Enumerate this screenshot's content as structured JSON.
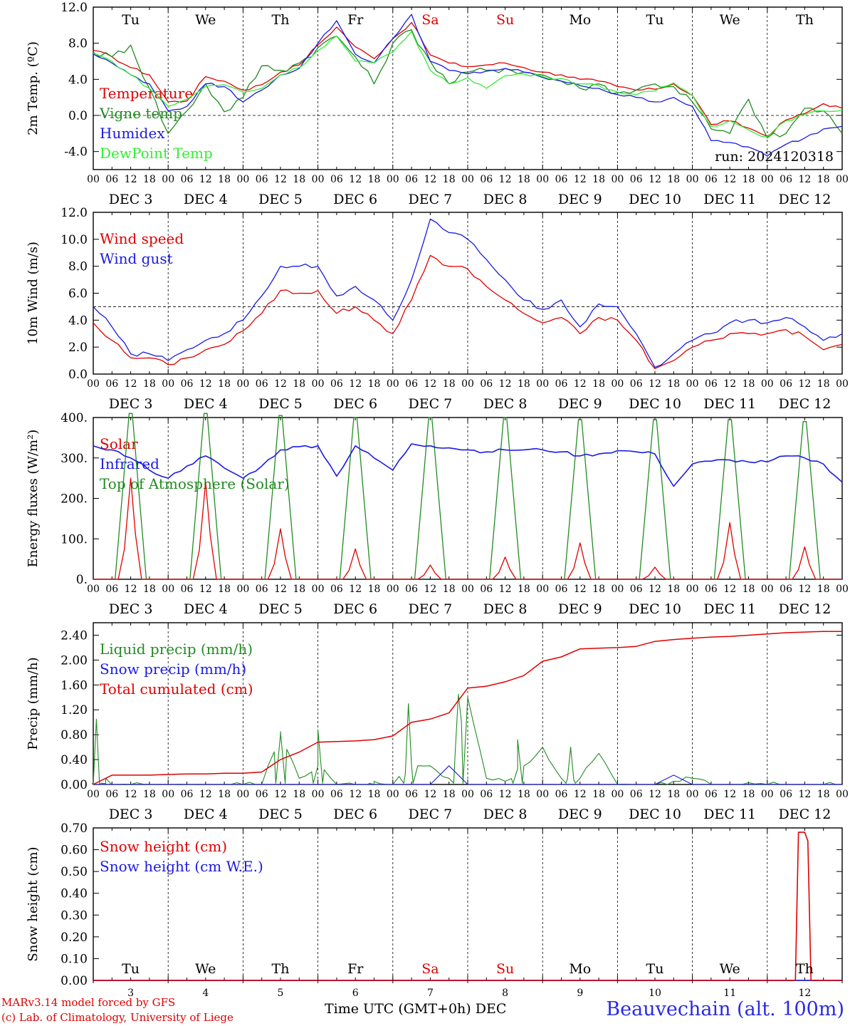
{
  "colors": {
    "red": "#e00000",
    "green": "#228b22",
    "blue": "#1a1ae6",
    "lime": "#33ee33",
    "weekend": "#e00000"
  },
  "footer": {
    "credit_line1": "MARv3.14 model forced by GFS",
    "credit_line2": "(c) Lab. of Climatology, University of Liege",
    "x_title": "Time UTC (GMT+0h) DEC",
    "station": "Beauvechain (alt. 100m)"
  },
  "chart_data": [
    {
      "type": "line",
      "ylabel": "2m Temp. (ºC)",
      "ylim": [
        -6,
        12
      ],
      "yticks": [
        "12.0",
        "8.0",
        "4.0",
        "0.0",
        "-4.0"
      ],
      "ytick_values": [
        12,
        8,
        4,
        0,
        -4
      ],
      "dashed_reference": 0,
      "day_names": [
        "Tu",
        "We",
        "Th",
        "Fr",
        "Sa",
        "Su",
        "Mo",
        "Tu",
        "We",
        "Th"
      ],
      "weekend_days": [
        "Sa",
        "Su"
      ],
      "annotation": "run: 2024120318",
      "x_hours": [
        0,
        6,
        12,
        18,
        24,
        30,
        36,
        42,
        48,
        54,
        60,
        66,
        72,
        78,
        84,
        90,
        96,
        102,
        108,
        114,
        120,
        126,
        132,
        138,
        144,
        150,
        156,
        162,
        168,
        174,
        180,
        186,
        192,
        198,
        204,
        210,
        216,
        222,
        228,
        234,
        240
      ],
      "series": [
        {
          "name": "Temperature",
          "color": "#e00000",
          "values": [
            7.2,
            6.5,
            5.3,
            4.5,
            1.5,
            1.6,
            4.3,
            3.8,
            2.8,
            3.4,
            4.8,
            5.6,
            7.8,
            9.8,
            7.6,
            6.3,
            8.5,
            10.3,
            6.7,
            5.8,
            5.4,
            5.6,
            5.8,
            5.3,
            4.8,
            4.5,
            4.0,
            3.8,
            3.2,
            2.8,
            2.9,
            3.5,
            2.2,
            -1.0,
            -0.6,
            -1.4,
            -2.3,
            -0.5,
            0.2,
            1.3,
            0.8
          ]
        },
        {
          "name": "Vigne temp",
          "color": "#228b22",
          "values": [
            7.0,
            6.5,
            7.8,
            3.0,
            -2.0,
            0.5,
            3.5,
            0.4,
            2.0,
            5.5,
            5.0,
            5.8,
            7.5,
            8.8,
            6.5,
            3.5,
            8.0,
            9.5,
            6.0,
            3.5,
            4.8,
            5.0,
            5.2,
            4.8,
            4.5,
            3.8,
            3.0,
            3.5,
            2.5,
            2.8,
            3.5,
            3.2,
            1.5,
            -1.5,
            -2.0,
            1.8,
            -2.5,
            -2.0,
            0.8,
            0.5,
            -2.0
          ]
        },
        {
          "name": "Humidex",
          "color": "#1a1ae6",
          "values": [
            6.8,
            5.8,
            4.5,
            3.5,
            0.5,
            1.0,
            3.5,
            3.2,
            1.5,
            2.8,
            4.5,
            5.2,
            8.0,
            10.5,
            6.8,
            5.8,
            8.5,
            11.2,
            6.0,
            5.0,
            4.6,
            4.9,
            5.2,
            4.8,
            4.2,
            3.8,
            3.3,
            3.0,
            2.3,
            2.0,
            1.5,
            2.0,
            1.0,
            -2.8,
            -3.0,
            -3.5,
            -4.5,
            -3.2,
            -2.5,
            -1.5,
            -1.2
          ]
        },
        {
          "name": "DewPoint Temp",
          "color": "#33ee33",
          "values": [
            6.9,
            6.0,
            4.5,
            3.0,
            1.0,
            1.8,
            3.2,
            3.4,
            2.6,
            3.0,
            4.5,
            5.3,
            7.2,
            8.8,
            6.0,
            5.8,
            7.0,
            9.3,
            5.0,
            3.5,
            4.2,
            3.0,
            4.4,
            4.6,
            4.3,
            4.1,
            3.5,
            3.3,
            2.6,
            2.3,
            2.7,
            3.6,
            2.2,
            -1.2,
            -0.6,
            -1.6,
            -2.4,
            -0.6,
            0.1,
            0.5,
            0.6
          ]
        }
      ]
    },
    {
      "type": "line",
      "ylabel": "10m Wind (m/s)",
      "ylim": [
        0,
        12
      ],
      "yticks": [
        "12.0",
        "10.0",
        "8.0",
        "6.0",
        "4.0",
        "2.0",
        "0.0"
      ],
      "ytick_values": [
        12,
        10,
        8,
        6,
        4,
        2,
        0
      ],
      "dashed_reference": 5,
      "x_hours": [
        0,
        6,
        12,
        18,
        24,
        30,
        36,
        42,
        48,
        54,
        60,
        66,
        72,
        78,
        84,
        90,
        96,
        102,
        108,
        114,
        120,
        126,
        132,
        138,
        144,
        150,
        156,
        162,
        168,
        174,
        180,
        186,
        192,
        198,
        204,
        210,
        216,
        222,
        228,
        234,
        240
      ],
      "series": [
        {
          "name": "Wind speed",
          "color": "#e00000",
          "values": [
            3.8,
            2.5,
            1.2,
            1.2,
            0.7,
            1.2,
            1.8,
            2.2,
            3.2,
            4.5,
            6.2,
            6.0,
            6.2,
            4.5,
            5.0,
            4.0,
            3.0,
            5.5,
            8.8,
            8.0,
            7.8,
            6.5,
            5.5,
            4.5,
            3.8,
            4.2,
            3.0,
            4.2,
            4.0,
            2.5,
            0.4,
            1.0,
            2.0,
            2.5,
            3.0,
            3.0,
            3.0,
            3.3,
            2.8,
            1.8,
            2.2
          ]
        },
        {
          "name": "Wind gust",
          "color": "#1a1ae6",
          "values": [
            5.0,
            3.5,
            1.5,
            1.5,
            1.0,
            1.8,
            2.5,
            3.0,
            4.0,
            5.8,
            8.0,
            8.0,
            8.0,
            5.8,
            6.5,
            5.5,
            4.0,
            7.0,
            11.5,
            10.5,
            10.0,
            8.5,
            7.0,
            5.5,
            4.8,
            5.5,
            3.5,
            5.2,
            5.0,
            3.0,
            0.5,
            1.5,
            2.5,
            3.0,
            3.8,
            4.0,
            3.8,
            4.2,
            3.5,
            2.5,
            3.0
          ]
        }
      ]
    },
    {
      "type": "line",
      "ylabel": "Energy fluxes (W/m²)",
      "ylim": [
        0,
        400
      ],
      "yticks": [
        "400.",
        "300.",
        "200.",
        "100.",
        "0."
      ],
      "ytick_values": [
        400,
        300,
        200,
        100,
        0
      ],
      "solar_peaks": [
        250,
        240,
        125,
        75,
        35,
        55,
        90,
        30,
        140,
        80
      ],
      "toa_peaks": [
        410,
        410,
        405,
        400,
        400,
        400,
        395,
        395,
        395,
        390
      ],
      "x_hours": [
        0,
        6,
        12,
        18,
        24,
        30,
        36,
        42,
        48,
        54,
        60,
        66,
        72,
        78,
        84,
        90,
        96,
        102,
        108,
        114,
        120,
        126,
        132,
        138,
        144,
        150,
        156,
        162,
        168,
        174,
        180,
        186,
        192,
        198,
        204,
        210,
        216,
        222,
        228,
        234,
        240
      ],
      "infrared": [
        330,
        320,
        300,
        270,
        250,
        280,
        305,
        275,
        250,
        280,
        320,
        328,
        330,
        255,
        330,
        300,
        270,
        335,
        330,
        325,
        320,
        315,
        320,
        320,
        320,
        315,
        305,
        310,
        318,
        315,
        310,
        230,
        285,
        292,
        295,
        290,
        290,
        305,
        300,
        285,
        240
      ],
      "series": [
        {
          "name": "Solar",
          "color": "#e00000"
        },
        {
          "name": "Infrared",
          "color": "#1a1ae6"
        },
        {
          "name": "Top of Atmosphere (Solar)",
          "color": "#228b22"
        }
      ]
    },
    {
      "type": "line",
      "ylabel": "Precip (mm/h)",
      "ylim": [
        0,
        2.6
      ],
      "yticks": [
        "2.40",
        "2.00",
        "1.60",
        "1.20",
        "0.80",
        "0.40",
        "0.00"
      ],
      "ytick_values": [
        2.4,
        2.0,
        1.6,
        1.2,
        0.8,
        0.4,
        0.0
      ],
      "x_hours": [
        0,
        6,
        12,
        18,
        24,
        30,
        36,
        42,
        48,
        54,
        60,
        66,
        72,
        78,
        84,
        90,
        96,
        102,
        108,
        114,
        120,
        126,
        132,
        138,
        144,
        150,
        156,
        162,
        168,
        174,
        180,
        186,
        192,
        198,
        204,
        210,
        216,
        222,
        228,
        234,
        240
      ],
      "series": [
        {
          "name": "Liquid precip (mm/h)",
          "color": "#228b22",
          "values": [
            0.0,
            0.0,
            0.0,
            0.0,
            0.0,
            0.0,
            0.0,
            0.0,
            0.0,
            0.0,
            0.8,
            0.1,
            0.3,
            0.0,
            0.0,
            0.0,
            0.0,
            0.3,
            0.3,
            0.1,
            1.4,
            0.1,
            0.05,
            0.3,
            0.6,
            0.1,
            0.1,
            0.5,
            0.0,
            0.0,
            0.0,
            0.05,
            0.1,
            0.0,
            0.0,
            0.03,
            0.0,
            0.0,
            0.0,
            0.0,
            0.0
          ],
          "spikes": [
            [
              1,
              1.05
            ],
            [
              4,
              0.1
            ],
            [
              60,
              0.85
            ],
            [
              72,
              0.88
            ],
            [
              90,
              0.05
            ],
            [
              101,
              1.3
            ],
            [
              117,
              1.45
            ],
            [
              136,
              0.72
            ],
            [
              153,
              0.6
            ]
          ]
        },
        {
          "name": "Snow precip (mm/h)",
          "color": "#1a1ae6",
          "values": [
            0,
            0,
            0,
            0,
            0,
            0,
            0,
            0,
            0,
            0,
            0,
            0,
            0,
            0,
            0,
            0,
            0,
            0,
            0,
            0.3,
            0,
            0,
            0,
            0,
            0,
            0,
            0,
            0,
            0,
            0,
            0,
            0.15,
            0,
            0,
            0,
            0,
            0,
            0,
            0,
            0,
            0
          ]
        },
        {
          "name": "Total cumulated (cm)",
          "color": "#e00000",
          "values": [
            0.0,
            0.15,
            0.15,
            0.15,
            0.16,
            0.17,
            0.17,
            0.18,
            0.18,
            0.2,
            0.4,
            0.52,
            0.68,
            0.69,
            0.7,
            0.72,
            0.78,
            1.0,
            1.05,
            1.15,
            1.55,
            1.58,
            1.65,
            1.75,
            1.98,
            2.05,
            2.18,
            2.19,
            2.2,
            2.22,
            2.3,
            2.33,
            2.35,
            2.37,
            2.38,
            2.4,
            2.42,
            2.44,
            2.45,
            2.46,
            2.46
          ]
        }
      ]
    },
    {
      "type": "line",
      "ylabel": "Snow height (cm)",
      "ylim": [
        0,
        0.7
      ],
      "yticks": [
        "0.70",
        "0.60",
        "0.50",
        "0.40",
        "0.30",
        "0.20",
        "0.10",
        "0.00"
      ],
      "ytick_values": [
        0.7,
        0.6,
        0.5,
        0.4,
        0.3,
        0.2,
        0.1,
        0.0
      ],
      "bottom_day_names": [
        "Tu",
        "We",
        "Th",
        "Fr",
        "Sa",
        "Su",
        "Mo",
        "Tu",
        "We",
        "Th"
      ],
      "bottom_day_numbers": [
        "3",
        "4",
        "5",
        "6",
        "7",
        "8",
        "9",
        "10",
        "11",
        "12"
      ],
      "series": [
        {
          "name": "Snow height (cm)",
          "color": "#e00000",
          "points": [
            [
              0,
              0
            ],
            [
              225,
              0
            ],
            [
              226,
              0.68
            ],
            [
              228,
              0.68
            ],
            [
              229,
              0.64
            ],
            [
              230,
              0.0
            ],
            [
              240,
              0
            ]
          ]
        },
        {
          "name": "Snow height (cm W.E.)",
          "color": "#1a1ae6",
          "points": [
            [
              0,
              0
            ],
            [
              240,
              0
            ]
          ]
        }
      ]
    }
  ],
  "x_axis": {
    "hour_labels": [
      "00",
      "06",
      "12",
      "18"
    ],
    "day_labels": [
      "DEC  3",
      "DEC  4",
      "DEC  5",
      "DEC  6",
      "DEC  7",
      "DEC  8",
      "DEC  9",
      "DEC 10",
      "DEC 11",
      "DEC 12"
    ]
  }
}
